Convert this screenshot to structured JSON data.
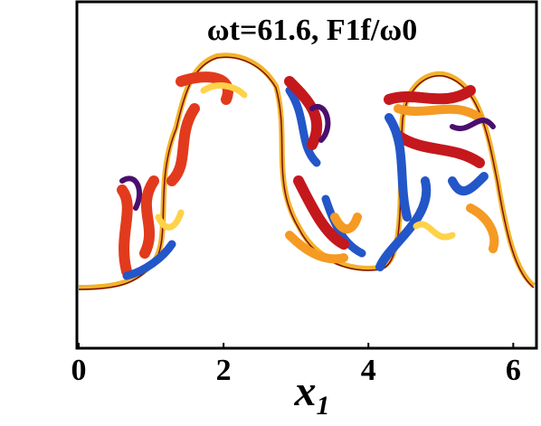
{
  "chart_data": {
    "type": "field",
    "title": "ωt=61.6, F1f/ω0",
    "xlabel": {
      "text": "x",
      "subscript": "1"
    },
    "xlim": [
      0,
      6.283
    ],
    "xticks": [
      0,
      2,
      4,
      6
    ]
  }
}
